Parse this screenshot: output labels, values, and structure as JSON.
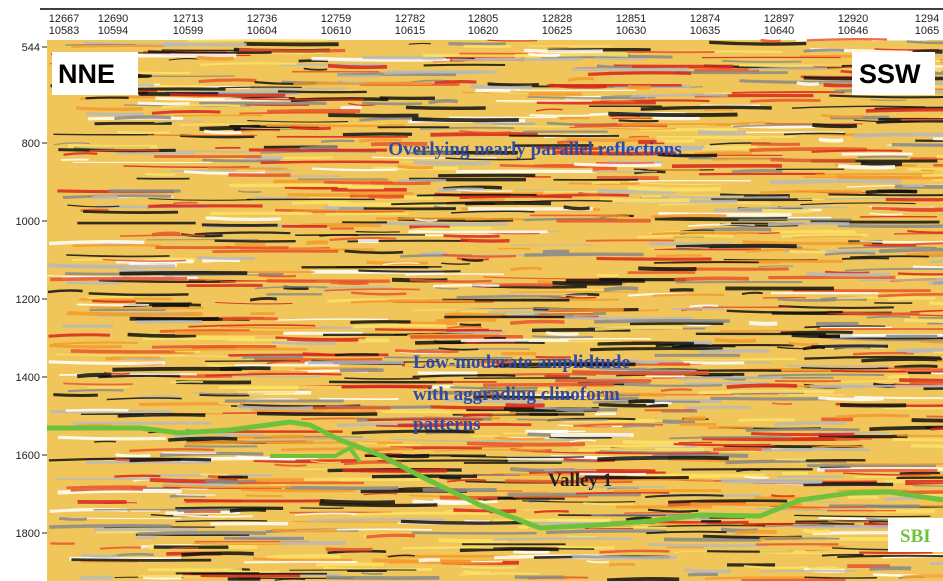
{
  "top_axis": {
    "trace_numbers": [
      "12667",
      "12690",
      "12713",
      "12736",
      "12759",
      "12782",
      "12805",
      "12828",
      "12851",
      "12874",
      "12897",
      "12920",
      "1294"
    ],
    "cdp_numbers": [
      "10583",
      "10594",
      "10599",
      "10604",
      "10610",
      "10615",
      "10620",
      "10625",
      "10630",
      "10635",
      "10640",
      "10646",
      "1065"
    ]
  },
  "left_axis": {
    "ticks": [
      544,
      800,
      1000,
      1200,
      1400,
      1600,
      1800
    ]
  },
  "labels": {
    "left": "NNE",
    "right": "SSW"
  },
  "annotations": {
    "upper": "Overlying nearly parallel reflections",
    "middle": [
      "Low-moderate amplidtude",
      "with aggrading clinoform",
      "patterns"
    ],
    "valley": "Valley 1",
    "horizon": "SBI"
  }
}
